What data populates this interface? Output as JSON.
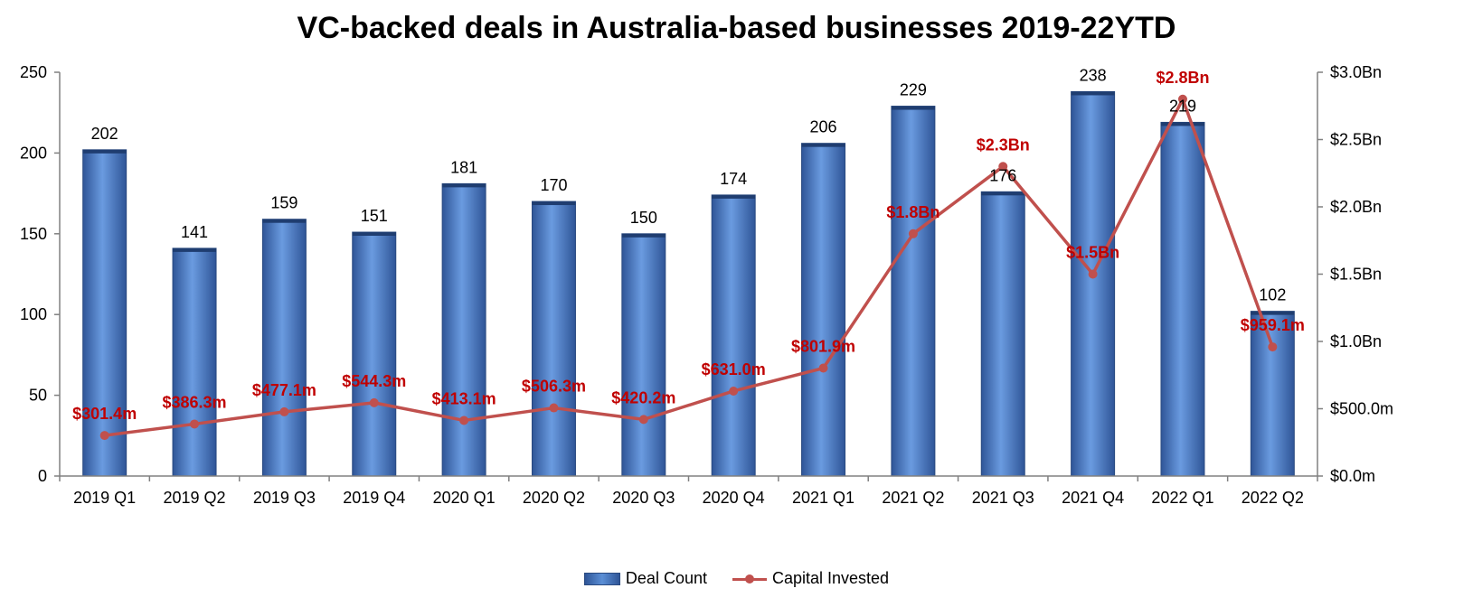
{
  "chart_data": {
    "type": "bar",
    "title": "VC-backed deals in Australia-based businesses 2019-22YTD",
    "categories": [
      "2019 Q1",
      "2019 Q2",
      "2019 Q3",
      "2019 Q4",
      "2020 Q1",
      "2020 Q2",
      "2020 Q3",
      "2020 Q4",
      "2021 Q1",
      "2021 Q2",
      "2021 Q3",
      "2021 Q4",
      "2022 Q1",
      "2022 Q2"
    ],
    "series": [
      {
        "name": "Deal Count",
        "type": "bar",
        "axis": "left",
        "color": "#4f81bd",
        "values": [
          202,
          141,
          159,
          151,
          181,
          170,
          150,
          174,
          206,
          229,
          176,
          238,
          219,
          102
        ],
        "labels": [
          "202",
          "141",
          "159",
          "151",
          "181",
          "170",
          "150",
          "174",
          "206",
          "229",
          "176",
          "238",
          "219",
          "102"
        ]
      },
      {
        "name": "Capital Invested",
        "type": "line",
        "axis": "right",
        "color": "#c0504d",
        "values": [
          301.4,
          386.3,
          477.1,
          544.3,
          413.1,
          506.3,
          420.2,
          631.0,
          801.9,
          1800,
          2300,
          1500,
          2800,
          959.1
        ],
        "labels": [
          "$301.4m",
          "$386.3m",
          "$477.1m",
          "$544.3m",
          "$413.1m",
          "$506.3m",
          "$420.2m",
          "$631.0m",
          "$801.9m",
          "$1.8Bn",
          "$2.3Bn",
          "$1.5Bn",
          "$2.8Bn",
          "$959.1m"
        ]
      }
    ],
    "y_left": {
      "range": [
        0,
        250
      ],
      "ticks": [
        0,
        50,
        100,
        150,
        200,
        250
      ],
      "tick_labels": [
        "0",
        "50",
        "100",
        "150",
        "200",
        "250"
      ]
    },
    "y_right": {
      "range": [
        0,
        3000
      ],
      "unit": "$ millions",
      "ticks": [
        0,
        500,
        1000,
        1500,
        2000,
        2500,
        3000
      ],
      "tick_labels": [
        "$0.0m",
        "$500.0m",
        "$1.0Bn",
        "$1.5Bn",
        "$2.0Bn",
        "$2.5Bn",
        "$3.0Bn"
      ]
    },
    "grid": false,
    "legend_position": "bottom"
  }
}
